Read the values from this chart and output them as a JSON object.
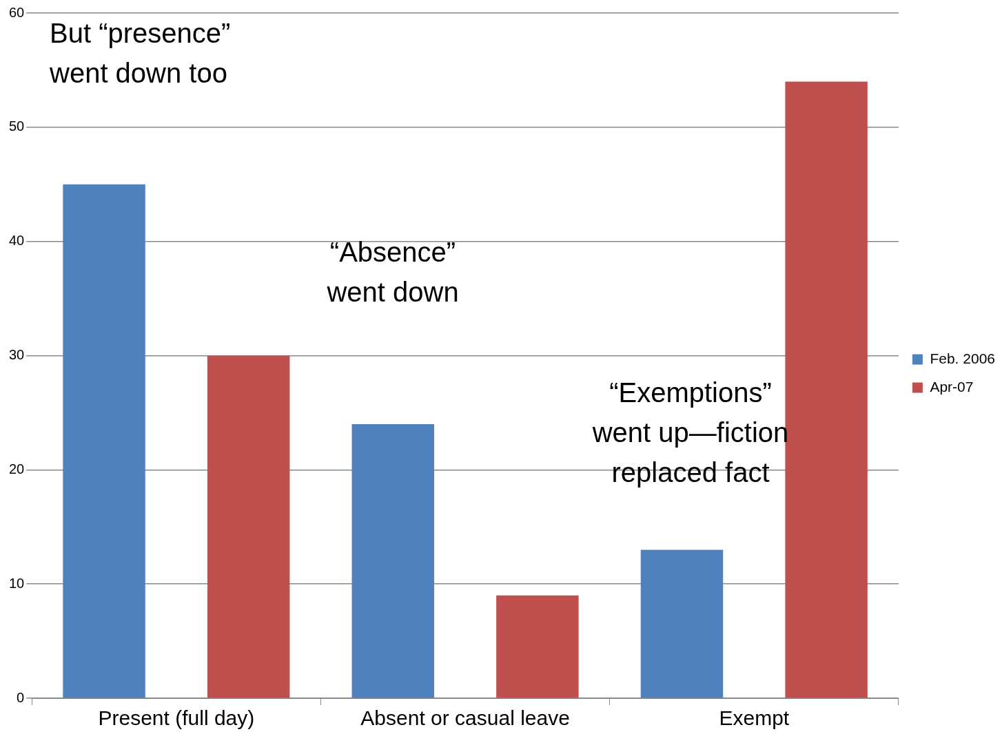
{
  "chart_data": {
    "type": "bar",
    "categories": [
      "Present (full day)",
      "Absent or casual leave",
      "Exempt"
    ],
    "series": [
      {
        "name": "Feb. 2006",
        "color": "#4f81bd",
        "values": [
          45,
          24,
          13
        ]
      },
      {
        "name": "Apr-07",
        "color": "#c0504d",
        "values": [
          30,
          9,
          54
        ]
      }
    ],
    "ylim": [
      0,
      60
    ],
    "yticks": [
      0,
      10,
      20,
      30,
      40,
      50,
      60
    ],
    "grid": "y",
    "legend": "right",
    "annotations": [
      "But “presence”\nwent down too",
      "“Absence”\nwent down",
      "“Exemptions”\nwent up—fiction\nreplaced fact"
    ]
  }
}
